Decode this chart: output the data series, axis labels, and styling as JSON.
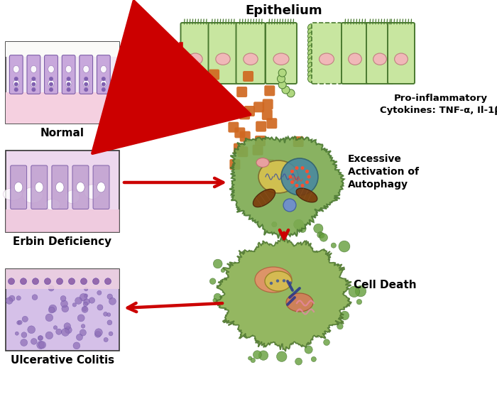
{
  "labels": {
    "epithelium": "Epithelium",
    "normal": "Normal",
    "erbin_deficiency": "Erbin Deficiency",
    "ulcerative_colitis": "Ulcerative Colitis",
    "pro_inflammatory": "Pro-inflammatory\nCytokines: TNF-α, Il-1β",
    "excessive_autophagy": "Excessive\nActivation of\nAutophagy",
    "cell_death": "Cell Death"
  },
  "colors": {
    "arrow_red": "#CC0000",
    "cell_green_light": "#C8E6A0",
    "cell_outline": "#4A7A30",
    "nucleus_pink": "#F0B8B8",
    "cytokine_orange": "#D06820",
    "background": "#FFFFFF",
    "organelle_brown": "#7B3A0A",
    "auto_cell_green": "#7CAA50",
    "auto_cell_edge": "#4A7830",
    "nucleus_yellow": "#D0C050",
    "teal_vacuole": "#4888A0",
    "death_cell_green": "#88B050",
    "death_cell_edge": "#507830",
    "salmon_organelle": "#E8906A",
    "blue_rod": "#203090"
  }
}
